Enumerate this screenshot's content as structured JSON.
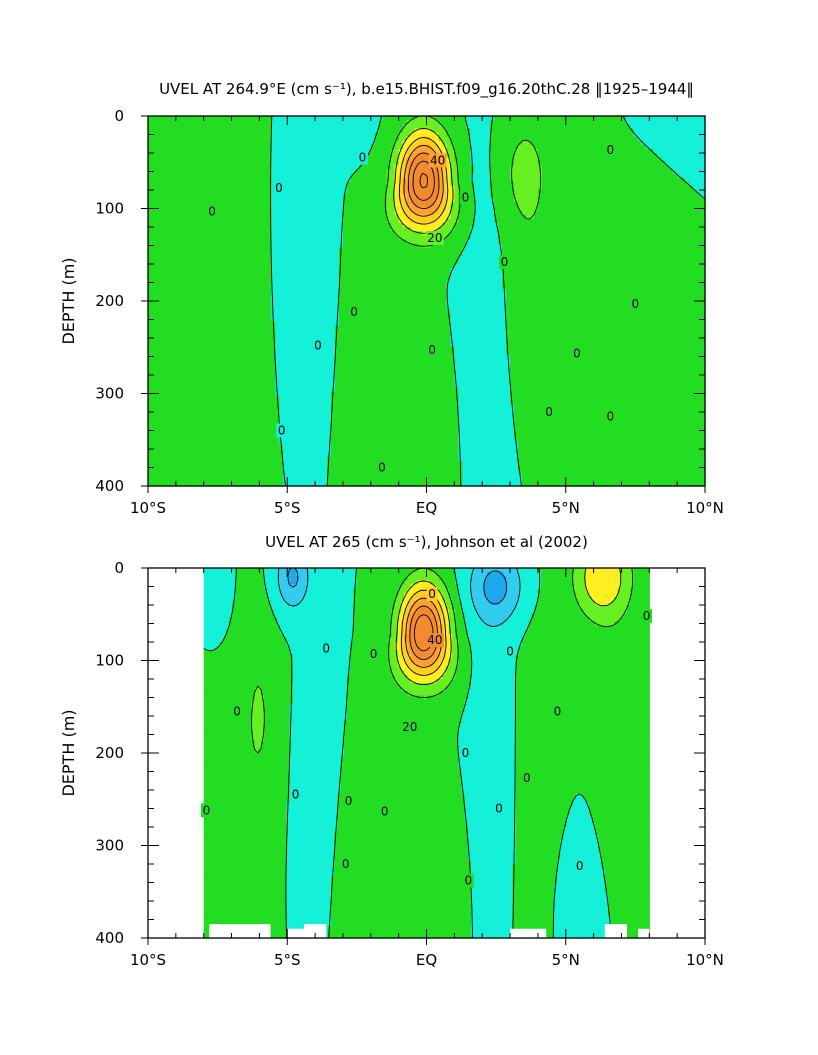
{
  "chart_data": [
    {
      "type": "heatmap",
      "title": "UVEL AT 264.9°E (cm s⁻¹), b.e15.BHIST.f09_g16.20thC.28 ‖1925–1944‖",
      "xlabel": "",
      "ylabel": "DEPTH (m)",
      "xlim": [
        -10,
        10
      ],
      "ylim": [
        400,
        0
      ],
      "x_ticks": [
        {
          "v": -10,
          "label": "10°S"
        },
        {
          "v": -5,
          "label": "5°S"
        },
        {
          "v": 0,
          "label": "EQ"
        },
        {
          "v": 5,
          "label": "5°N"
        },
        {
          "v": 10,
          "label": "10°N"
        }
      ],
      "y_ticks": [
        {
          "v": 0,
          "label": "0"
        },
        {
          "v": 100,
          "label": "100"
        },
        {
          "v": 200,
          "label": "200"
        },
        {
          "v": 300,
          "label": "300"
        },
        {
          "v": 400,
          "label": "400"
        }
      ],
      "data_extent": [
        -10,
        10
      ],
      "contour_interval": 10,
      "features": [
        {
          "lat": -0.1,
          "depth": 70,
          "value": 72,
          "wlat": 0.9,
          "wdepth": 50,
          "dshift": 0.9
        },
        {
          "lat": -9.2,
          "depth": 210,
          "value": 4,
          "wlat": 3.2,
          "wdepth": 180
        },
        {
          "lat": -7.5,
          "depth": 270,
          "value": 3,
          "wlat": 1.2,
          "wdepth": 140
        },
        {
          "lat": -2.1,
          "depth": 300,
          "value": 5,
          "wlat": 0.8,
          "wdepth": 150
        },
        {
          "lat": 0.3,
          "depth": 330,
          "value": 4,
          "wlat": 0.9,
          "wdepth": 120
        },
        {
          "lat": 3.8,
          "depth": 150,
          "value": 6,
          "wlat": 0.8,
          "wdepth": 120
        },
        {
          "lat": 3.5,
          "depth": 60,
          "value": 12,
          "wlat": 0.8,
          "wdepth": 55
        },
        {
          "lat": 6.7,
          "depth": 250,
          "value": 3,
          "wlat": 0.6,
          "wdepth": 120
        },
        {
          "lat": 8.0,
          "depth": 120,
          "value": 3,
          "wlat": 1.0,
          "wdepth": 80
        },
        {
          "lat": -2.8,
          "depth": 0,
          "value": -6,
          "wlat": 0.8,
          "wdepth": 35
        },
        {
          "lat": 9.2,
          "depth": 10,
          "value": -4,
          "wlat": 1.2,
          "wdepth": 40
        },
        {
          "lat": 1.8,
          "depth": 220,
          "value": -4,
          "wlat": 0.9,
          "wdepth": 180
        },
        {
          "lat": -4.5,
          "depth": 180,
          "value": -3,
          "wlat": 1.1,
          "wdepth": 150
        }
      ],
      "contour_labels": [
        {
          "lat": -7.7,
          "depth": 103,
          "text": "0"
        },
        {
          "lat": -5.3,
          "depth": 78,
          "text": "0"
        },
        {
          "lat": -2.3,
          "depth": 45,
          "text": "0"
        },
        {
          "lat": -2.6,
          "depth": 212,
          "text": "0"
        },
        {
          "lat": -3.9,
          "depth": 248,
          "text": "0"
        },
        {
          "lat": -5.2,
          "depth": 340,
          "text": "0"
        },
        {
          "lat": -1.6,
          "depth": 380,
          "text": "0"
        },
        {
          "lat": 0.2,
          "depth": 253,
          "text": "0"
        },
        {
          "lat": 1.4,
          "depth": 88,
          "text": "0"
        },
        {
          "lat": 2.8,
          "depth": 158,
          "text": "0"
        },
        {
          "lat": 4.4,
          "depth": 320,
          "text": "0"
        },
        {
          "lat": 5.4,
          "depth": 257,
          "text": "0"
        },
        {
          "lat": 6.6,
          "depth": 325,
          "text": "0"
        },
        {
          "lat": 7.5,
          "depth": 203,
          "text": "0"
        },
        {
          "lat": 6.6,
          "depth": 37,
          "text": "0"
        },
        {
          "lat": 0.4,
          "depth": 48,
          "text": "40"
        },
        {
          "lat": 0.3,
          "depth": 132,
          "text": "20"
        }
      ]
    },
    {
      "type": "heatmap",
      "title": "UVEL AT 265 (cm s⁻¹), Johnson et al (2002)",
      "xlabel": "",
      "ylabel": "DEPTH (m)",
      "xlim": [
        -10,
        10
      ],
      "ylim": [
        400,
        0
      ],
      "x_ticks": [
        {
          "v": -10,
          "label": "10°S"
        },
        {
          "v": -5,
          "label": "5°S"
        },
        {
          "v": 0,
          "label": "EQ"
        },
        {
          "v": 5,
          "label": "5°N"
        },
        {
          "v": 10,
          "label": "10°N"
        }
      ],
      "y_ticks": [
        {
          "v": 0,
          "label": "0"
        },
        {
          "v": 100,
          "label": "100"
        },
        {
          "v": 200,
          "label": "200"
        },
        {
          "v": 300,
          "label": "300"
        },
        {
          "v": 400,
          "label": "400"
        }
      ],
      "data_extent": [
        -8,
        8
      ],
      "contour_interval": 10,
      "features": [
        {
          "lat": -0.1,
          "depth": 70,
          "value": 70,
          "wlat": 0.85,
          "wdepth": 50,
          "dshift": 0.8
        },
        {
          "lat": 6.3,
          "depth": 10,
          "value": 28,
          "wlat": 1.0,
          "wdepth": 45
        },
        {
          "lat": -6.0,
          "depth": 160,
          "value": 10,
          "wlat": 0.6,
          "wdepth": 100
        },
        {
          "lat": -7.2,
          "depth": 250,
          "value": 5,
          "wlat": 1.1,
          "wdepth": 180
        },
        {
          "lat": 4.2,
          "depth": 220,
          "value": 5,
          "wlat": 1.0,
          "wdepth": 200
        },
        {
          "lat": 6.8,
          "depth": 150,
          "value": 5,
          "wlat": 1.0,
          "wdepth": 160
        },
        {
          "lat": -2.8,
          "depth": 320,
          "value": 4,
          "wlat": 0.7,
          "wdepth": 120
        },
        {
          "lat": 0.5,
          "depth": 330,
          "value": 4,
          "wlat": 1.1,
          "wdepth": 110
        },
        {
          "lat": -4.8,
          "depth": 10,
          "value": -22,
          "wlat": 0.6,
          "wdepth": 35
        },
        {
          "lat": 2.5,
          "depth": 20,
          "value": -22,
          "wlat": 1.0,
          "wdepth": 40
        },
        {
          "lat": -3.8,
          "depth": 240,
          "value": -5,
          "wlat": 0.7,
          "wdepth": 130
        },
        {
          "lat": 2.3,
          "depth": 200,
          "value": -6,
          "wlat": 0.8,
          "wdepth": 180
        },
        {
          "lat": 5.3,
          "depth": 350,
          "value": -5,
          "wlat": 0.9,
          "wdepth": 100
        },
        {
          "lat": -7.6,
          "depth": 30,
          "value": -5,
          "wlat": 0.6,
          "wdepth": 60
        }
      ],
      "contour_labels": [
        {
          "lat": -6.8,
          "depth": 155,
          "text": "0"
        },
        {
          "lat": -7.9,
          "depth": 262,
          "text": "0"
        },
        {
          "lat": -4.7,
          "depth": 245,
          "text": "0"
        },
        {
          "lat": -3.6,
          "depth": 87,
          "text": "0"
        },
        {
          "lat": -2.8,
          "depth": 252,
          "text": "0"
        },
        {
          "lat": -2.9,
          "depth": 320,
          "text": "0"
        },
        {
          "lat": -1.5,
          "depth": 263,
          "text": "0"
        },
        {
          "lat": -1.9,
          "depth": 93,
          "text": "0"
        },
        {
          "lat": 1.4,
          "depth": 200,
          "text": "0"
        },
        {
          "lat": 1.5,
          "depth": 338,
          "text": "0"
        },
        {
          "lat": 2.6,
          "depth": 260,
          "text": "0"
        },
        {
          "lat": 3.0,
          "depth": 90,
          "text": "0"
        },
        {
          "lat": 3.6,
          "depth": 227,
          "text": "0"
        },
        {
          "lat": 4.7,
          "depth": 155,
          "text": "0"
        },
        {
          "lat": 5.5,
          "depth": 322,
          "text": "0"
        },
        {
          "lat": 7.9,
          "depth": 52,
          "text": "0"
        },
        {
          "lat": 0.3,
          "depth": 78,
          "text": "40"
        },
        {
          "lat": -0.6,
          "depth": 172,
          "text": "20"
        },
        {
          "lat": 0.2,
          "depth": 28,
          "text": "0"
        }
      ],
      "no_data_bottom": [
        {
          "from": -7.8,
          "to": -5.6,
          "depth": 385
        },
        {
          "from": -5.0,
          "to": -4.4,
          "depth": 390
        },
        {
          "from": -4.4,
          "to": -3.6,
          "depth": 385
        },
        {
          "from": 3.0,
          "to": 4.3,
          "depth": 390
        },
        {
          "from": 6.4,
          "to": 7.2,
          "depth": 385
        },
        {
          "from": 7.6,
          "to": 8.0,
          "depth": 390
        }
      ]
    }
  ],
  "colors": {
    "bins": [
      {
        "max": -20,
        "color": "#1ea6ee"
      },
      {
        "max": -10,
        "color": "#33ccee"
      },
      {
        "max": 0,
        "color": "#15f0d8"
      },
      {
        "max": 10,
        "color": "#22dd22"
      },
      {
        "max": 20,
        "color": "#66f022"
      },
      {
        "max": 30,
        "color": "#ffee22"
      },
      {
        "max": 40,
        "color": "#ffcc22"
      },
      {
        "max": 50,
        "color": "#ffa030"
      },
      {
        "max": 999,
        "color": "#f48a30"
      }
    ],
    "contour_line": "#000000"
  }
}
